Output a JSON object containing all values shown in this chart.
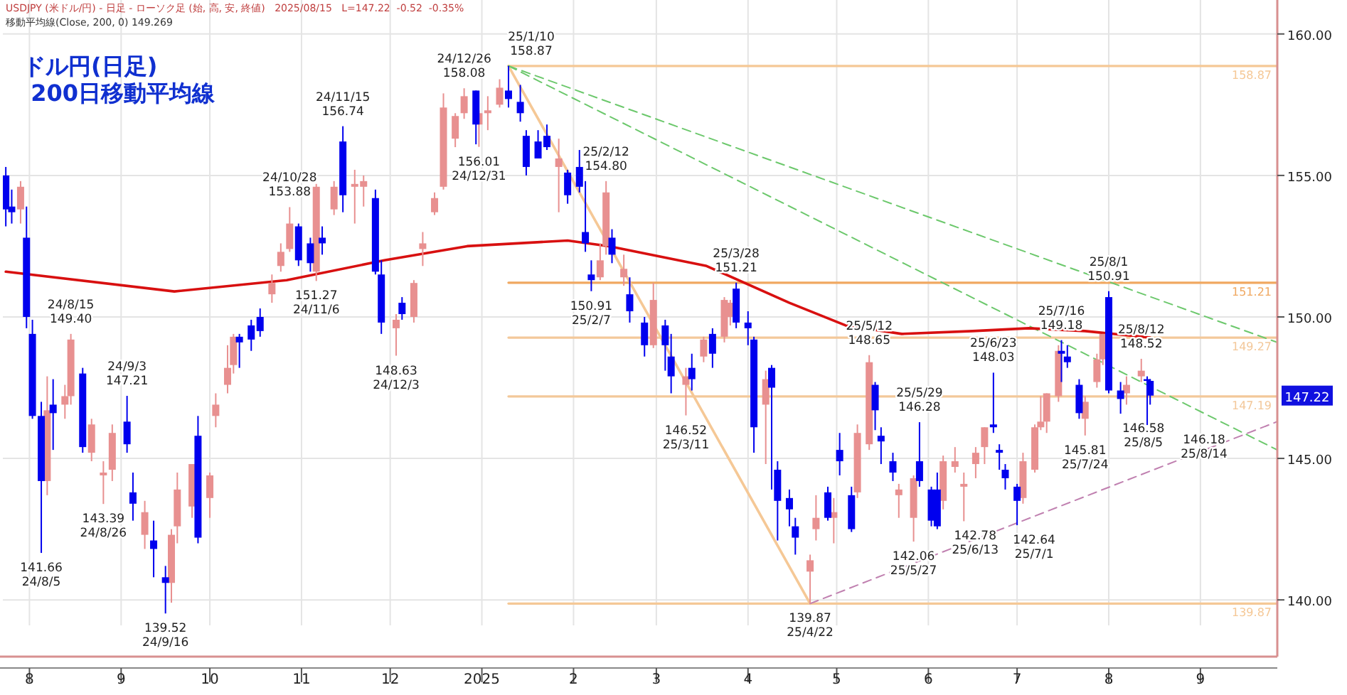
{
  "chart_data": {
    "type": "candlestick",
    "title": "ドル円(日足)\n 200日移動平均線",
    "subtitle": "USDJPY (米ドル/円) - 日足 - ローソク足 (始, 高, 安, 終値)   2025/08/15   L=147.22  -0.52  -0.35%",
    "xlim": [
      "2024-07-23",
      "2025-09-27"
    ],
    "ylim": [
      139.1,
      161.2
    ],
    "xticks": [
      {
        "value": "2024-08-01",
        "label": "8"
      },
      {
        "value": "2024-09-01",
        "label": "9"
      },
      {
        "value": "2024-10-01",
        "label": "10"
      },
      {
        "value": "2024-11-01",
        "label": "11"
      },
      {
        "value": "2024-12-01",
        "label": "12"
      },
      {
        "value": "2025-01-01",
        "label": "2025"
      },
      {
        "value": "2025-02-01",
        "label": "2"
      },
      {
        "value": "2025-03-01",
        "label": "3"
      },
      {
        "value": "2025-04-01",
        "label": "4"
      },
      {
        "value": "2025-05-01",
        "label": "5"
      },
      {
        "value": "2025-06-01",
        "label": "6"
      },
      {
        "value": "2025-07-01",
        "label": "7"
      },
      {
        "value": "2025-08-01",
        "label": "8"
      },
      {
        "value": "2025-09-01",
        "label": "9"
      }
    ],
    "yticks": [
      {
        "value": 140,
        "label": "140.00"
      },
      {
        "value": 145,
        "label": "145.00"
      },
      {
        "value": 150,
        "label": "150.00"
      },
      {
        "value": 155,
        "label": "155.00"
      },
      {
        "value": 160,
        "label": "160.00"
      }
    ],
    "grid": true,
    "series": [
      {
        "type": "line",
        "color": "#f5c896",
        "x": [
          "2025-01-10",
          "2025-09-27"
        ],
        "values": [
          158.87,
          158.87
        ],
        "name": "158.87"
      },
      {
        "type": "line",
        "color": "#f0a860",
        "x": [
          "2025-01-10",
          "2025-09-27"
        ],
        "values": [
          151.21,
          151.21
        ],
        "name": "151.21"
      },
      {
        "type": "line",
        "color": "#f3c89a",
        "x": [
          "2025-01-10",
          "2025-09-27"
        ],
        "values": [
          149.27,
          149.27
        ],
        "name": "149.27"
      },
      {
        "type": "line",
        "color": "#f3c89a",
        "x": [
          "2025-01-10",
          "2025-09-27"
        ],
        "values": [
          147.19,
          147.19
        ],
        "name": "147.19"
      },
      {
        "type": "line",
        "color": "#f5c896",
        "x": [
          "2025-01-10",
          "2025-09-27"
        ],
        "values": [
          139.87,
          139.87
        ],
        "name": "139.87"
      },
      {
        "type": "line",
        "color": "#f5c896",
        "x": [
          "2025-01-10",
          "2025-04-22"
        ],
        "values": [
          158.87,
          139.87
        ]
      },
      {
        "type": "line",
        "color": "#6cc86c",
        "line_style": "dashed",
        "x": [
          "2025-01-10",
          "2025-09-27"
        ],
        "values": [
          158.87,
          149.1
        ]
      },
      {
        "type": "line",
        "color": "#6cc86c",
        "line_style": "dashed",
        "x": [
          "2025-01-10",
          "2025-09-27"
        ],
        "values": [
          158.87,
          145.3
        ]
      },
      {
        "type": "line",
        "color": "#c080b0",
        "line_style": "dashed",
        "x": [
          "2025-04-22",
          "2025-09-27"
        ],
        "values": [
          139.87,
          146.3
        ]
      },
      {
        "type": "line",
        "color": "#d81010",
        "x": [
          "2024-07-24",
          "2024-09-19",
          "2024-10-27",
          "2024-11-29",
          "2024-12-27",
          "2025-01-30",
          "2025-02-13",
          "2025-03-18",
          "2025-04-15",
          "2025-05-04",
          "2025-05-23",
          "2025-06-16",
          "2025-07-05",
          "2025-07-24",
          "2025-08-15"
        ],
        "values": [
          151.6,
          150.9,
          151.3,
          152.0,
          152.5,
          152.7,
          152.5,
          151.8,
          150.5,
          149.7,
          149.4,
          149.5,
          149.6,
          149.5,
          149.27
        ]
      },
      {
        "color": "#e89090",
        "x": [
          "2024-07-29",
          "2024-08-07",
          "2024-08-13",
          "2024-08-15",
          "2024-08-22",
          "2024-08-26",
          "2024-08-29",
          "2024-09-09",
          "2024-09-18",
          "2024-09-20",
          "2024-09-25",
          "2024-10-01",
          "2024-10-03",
          "2024-10-07",
          "2024-10-09",
          "2024-10-22",
          "2024-10-25",
          "2024-10-28",
          "2024-11-06",
          "2024-11-12",
          "2024-11-19",
          "2024-11-22",
          "2024-12-03",
          "2024-12-09",
          "2024-12-12",
          "2024-12-16",
          "2024-12-19",
          "2024-12-23",
          "2024-12-26",
          "2024-12-31",
          "2025-01-03",
          "2025-01-07",
          "2025-01-27",
          "2025-02-10",
          "2025-02-12",
          "2025-02-18",
          "2025-02-28",
          "2025-03-11",
          "2025-03-17",
          "2025-03-24",
          "2025-03-26",
          "2025-04-07",
          "2025-04-22",
          "2025-04-24",
          "2025-04-30",
          "2025-05-08",
          "2025-05-12",
          "2025-05-22",
          "2025-05-27",
          "2025-06-06",
          "2025-06-10",
          "2025-06-13",
          "2025-06-17",
          "2025-06-20",
          "2025-07-03",
          "2025-07-07",
          "2025-07-09",
          "2025-07-11",
          "2025-07-15",
          "2025-07-24",
          "2025-07-28",
          "2025-07-30",
          "2025-08-07",
          "2025-08-12"
        ],
        "ohlc": [
          [
            153.8,
            154.8,
            153.3,
            154.6
          ],
          [
            144.2,
            147.9,
            143.7,
            146.7
          ],
          [
            146.9,
            147.6,
            146.4,
            147.2
          ],
          [
            147.2,
            149.4,
            146.9,
            149.2
          ],
          [
            145.2,
            146.4,
            144.9,
            146.2
          ],
          [
            144.4,
            144.9,
            143.39,
            144.5
          ],
          [
            144.6,
            146.2,
            144.2,
            145.9
          ],
          [
            142.3,
            143.5,
            141.8,
            143.1
          ],
          [
            140.6,
            142.5,
            139.9,
            142.3
          ],
          [
            142.6,
            144.5,
            142.0,
            143.9
          ],
          [
            143.3,
            144.8,
            142.9,
            144.8
          ],
          [
            143.6,
            144.5,
            142.9,
            144.4
          ],
          [
            146.5,
            147.3,
            146.1,
            146.9
          ],
          [
            147.6,
            149.0,
            147.3,
            148.2
          ],
          [
            148.3,
            149.4,
            148.0,
            149.3
          ],
          [
            150.8,
            151.5,
            150.5,
            151.2
          ],
          [
            151.8,
            152.6,
            151.6,
            152.3
          ],
          [
            152.4,
            153.88,
            152.3,
            153.3
          ],
          [
            151.6,
            154.7,
            151.27,
            154.6
          ],
          [
            153.8,
            154.8,
            153.6,
            154.6
          ],
          [
            154.6,
            155.2,
            153.3,
            154.7
          ],
          [
            154.6,
            155.0,
            153.9,
            154.8
          ],
          [
            149.6,
            150.1,
            148.63,
            149.9
          ],
          [
            150.0,
            151.3,
            149.8,
            151.2
          ],
          [
            152.4,
            153.0,
            151.8,
            152.6
          ],
          [
            153.7,
            154.4,
            153.6,
            154.2
          ],
          [
            154.6,
            157.9,
            154.5,
            157.4
          ],
          [
            156.3,
            157.2,
            156.0,
            157.1
          ],
          [
            157.2,
            158.08,
            157.0,
            157.8
          ],
          [
            156.8,
            157.3,
            156.01,
            157.2
          ],
          [
            157.2,
            157.8,
            156.6,
            157.3
          ],
          [
            157.5,
            158.4,
            157.4,
            158.1
          ],
          [
            155.3,
            156.3,
            153.7,
            155.6
          ],
          [
            151.4,
            152.6,
            151.3,
            152.0
          ],
          [
            152.5,
            154.8,
            152.2,
            154.4
          ],
          [
            151.4,
            152.2,
            151.1,
            151.7
          ],
          [
            149.0,
            151.2,
            148.9,
            150.6
          ],
          [
            147.6,
            148.2,
            146.52,
            147.9
          ],
          [
            148.6,
            149.3,
            148.4,
            149.2
          ],
          [
            149.3,
            150.7,
            149.1,
            150.6
          ],
          [
            150.0,
            150.6,
            149.7,
            150.5
          ],
          [
            146.9,
            148.1,
            144.8,
            147.8
          ],
          [
            141.0,
            141.6,
            139.87,
            141.4
          ],
          [
            142.5,
            143.7,
            142.1,
            142.9
          ],
          [
            142.9,
            143.6,
            142.0,
            143.1
          ],
          [
            143.8,
            146.2,
            143.6,
            145.9
          ],
          [
            145.5,
            148.65,
            145.3,
            148.4
          ],
          [
            143.7,
            144.1,
            142.9,
            143.9
          ],
          [
            142.9,
            144.4,
            142.06,
            144.3
          ],
          [
            143.5,
            145.1,
            143.2,
            144.9
          ],
          [
            144.7,
            145.4,
            144.5,
            144.9
          ],
          [
            144.0,
            144.5,
            142.78,
            144.1
          ],
          [
            144.8,
            145.4,
            144.3,
            145.2
          ],
          [
            145.4,
            146.1,
            144.8,
            146.1
          ],
          [
            143.6,
            145.2,
            143.4,
            144.9
          ],
          [
            144.6,
            146.2,
            144.5,
            146.1
          ],
          [
            146.1,
            147.2,
            146.0,
            146.3
          ],
          [
            146.3,
            147.3,
            145.9,
            147.3
          ],
          [
            147.2,
            149.0,
            147.0,
            148.8
          ],
          [
            146.4,
            147.2,
            145.81,
            147.0
          ],
          [
            147.7,
            148.7,
            147.5,
            148.5
          ],
          [
            148.5,
            149.4,
            148.3,
            149.4
          ],
          [
            147.3,
            147.9,
            146.9,
            147.6
          ],
          [
            147.9,
            148.52,
            147.7,
            148.1
          ]
        ]
      },
      {
        "color": "#0000ee",
        "x": [
          "2024-07-24",
          "2024-07-26",
          "2024-07-31",
          "2024-08-02",
          "2024-08-05",
          "2024-08-09",
          "2024-08-19",
          "2024-09-03",
          "2024-09-05",
          "2024-09-12",
          "2024-09-16",
          "2024-09-27",
          "2024-10-11",
          "2024-10-15",
          "2024-10-18",
          "2024-10-31",
          "2024-11-04",
          "2024-11-08",
          "2024-11-15",
          "2024-11-26",
          "2024-11-28",
          "2024-12-05",
          "2024-12-30",
          "2025-01-10",
          "2025-01-14",
          "2025-01-16",
          "2025-01-20",
          "2025-01-23",
          "2025-01-30",
          "2025-02-03",
          "2025-02-05",
          "2025-02-07",
          "2025-02-14",
          "2025-02-20",
          "2025-02-25",
          "2025-03-04",
          "2025-03-06",
          "2025-03-13",
          "2025-03-20",
          "2025-03-28",
          "2025-04-01",
          "2025-04-03",
          "2025-04-09",
          "2025-04-11",
          "2025-04-15",
          "2025-04-17",
          "2025-04-28",
          "2025-05-02",
          "2025-05-06",
          "2025-05-14",
          "2025-05-16",
          "2025-05-20",
          "2025-05-29",
          "2025-06-02",
          "2025-06-04",
          "2025-06-23",
          "2025-06-25",
          "2025-06-27",
          "2025-07-01",
          "2025-07-16",
          "2025-07-18",
          "2025-07-22",
          "2025-08-01",
          "2025-08-05",
          "2025-08-14",
          "2025-08-15"
        ],
        "ohlc": [
          [
            155.0,
            155.3,
            153.2,
            153.8
          ],
          [
            153.9,
            154.5,
            153.3,
            153.7
          ],
          [
            152.8,
            153.9,
            149.6,
            150.0
          ],
          [
            149.4,
            149.9,
            146.4,
            146.5
          ],
          [
            146.5,
            147.0,
            141.66,
            144.2
          ],
          [
            146.9,
            147.8,
            145.3,
            146.6
          ],
          [
            148.0,
            148.2,
            145.2,
            145.4
          ],
          [
            146.3,
            147.21,
            145.2,
            145.5
          ],
          [
            143.8,
            144.5,
            142.8,
            143.4
          ],
          [
            142.1,
            142.8,
            140.8,
            141.8
          ],
          [
            140.8,
            141.2,
            139.52,
            140.6
          ],
          [
            145.8,
            146.5,
            142.0,
            142.2
          ],
          [
            149.3,
            149.4,
            148.2,
            149.1
          ],
          [
            149.7,
            149.9,
            148.8,
            149.2
          ],
          [
            150.0,
            150.3,
            149.3,
            149.5
          ],
          [
            153.2,
            153.3,
            151.8,
            152.0
          ],
          [
            152.6,
            152.8,
            151.6,
            151.9
          ],
          [
            152.8,
            153.2,
            152.2,
            152.6
          ],
          [
            156.2,
            156.74,
            153.7,
            154.3
          ],
          [
            154.2,
            154.5,
            151.5,
            151.6
          ],
          [
            151.5,
            152.0,
            149.4,
            149.8
          ],
          [
            150.5,
            150.7,
            149.9,
            150.1
          ],
          [
            158.0,
            158.0,
            156.1,
            156.8
          ],
          [
            158.0,
            158.87,
            157.4,
            157.7
          ],
          [
            157.6,
            158.2,
            156.9,
            157.2
          ],
          [
            156.4,
            156.6,
            155.0,
            155.3
          ],
          [
            156.2,
            156.6,
            155.6,
            155.6
          ],
          [
            156.4,
            156.8,
            155.9,
            156.0
          ],
          [
            155.1,
            155.2,
            154.0,
            154.3
          ],
          [
            155.3,
            155.9,
            154.4,
            154.6
          ],
          [
            153.0,
            154.8,
            152.3,
            152.6
          ],
          [
            151.5,
            152.0,
            150.91,
            151.3
          ],
          [
            152.8,
            153.1,
            151.9,
            152.2
          ],
          [
            150.8,
            151.4,
            149.8,
            150.2
          ],
          [
            149.8,
            150.0,
            148.6,
            149.0
          ],
          [
            149.7,
            149.9,
            148.1,
            149.0
          ],
          [
            148.6,
            149.4,
            147.3,
            147.9
          ],
          [
            148.2,
            148.7,
            147.4,
            147.8
          ],
          [
            149.4,
            149.6,
            148.2,
            148.7
          ],
          [
            151.0,
            151.21,
            149.6,
            149.8
          ],
          [
            149.8,
            150.2,
            149.0,
            149.6
          ],
          [
            149.2,
            149.3,
            145.2,
            146.1
          ],
          [
            148.2,
            148.3,
            143.9,
            147.5
          ],
          [
            144.6,
            144.9,
            142.1,
            143.5
          ],
          [
            143.6,
            143.9,
            142.6,
            143.2
          ],
          [
            142.6,
            142.9,
            141.6,
            142.2
          ],
          [
            143.8,
            144.0,
            142.8,
            142.9
          ],
          [
            145.3,
            145.9,
            144.4,
            144.9
          ],
          [
            143.7,
            144.0,
            142.4,
            142.5
          ],
          [
            147.6,
            147.7,
            146.0,
            146.7
          ],
          [
            145.8,
            146.1,
            144.8,
            145.6
          ],
          [
            144.9,
            145.2,
            144.2,
            144.5
          ],
          [
            144.9,
            146.28,
            144.0,
            144.2
          ],
          [
            143.9,
            144.0,
            142.6,
            142.8
          ],
          [
            143.9,
            144.5,
            142.5,
            142.6
          ],
          [
            146.2,
            148.03,
            145.9,
            146.1
          ],
          [
            145.3,
            145.5,
            144.6,
            145.2
          ],
          [
            144.6,
            144.8,
            143.9,
            144.3
          ],
          [
            144.0,
            144.1,
            142.64,
            143.5
          ],
          [
            148.8,
            149.18,
            147.7,
            148.7
          ],
          [
            148.6,
            149.0,
            148.2,
            148.4
          ],
          [
            147.6,
            147.8,
            146.4,
            146.6
          ],
          [
            150.7,
            150.91,
            147.3,
            147.4
          ],
          [
            147.4,
            147.7,
            146.58,
            147.1
          ],
          [
            147.8,
            147.9,
            146.18,
            147.74
          ],
          [
            147.74,
            147.8,
            146.9,
            147.22
          ]
        ]
      }
    ],
    "annotations": [
      "移動平均線(Close, 200, 0) 149.269",
      {
        "text": "147.22",
        "y": 147.22
      },
      {
        "text": "141.66\n24/8/5",
        "x": "2024-08-05",
        "y": 141.66
      },
      {
        "text": "24/8/15\n149.40",
        "x": "2024-08-15",
        "y": 149.4
      },
      {
        "text": "143.39\n24/8/26",
        "x": "2024-08-26",
        "y": 143.39
      },
      {
        "text": "24/9/3\n147.21",
        "x": "2024-09-03",
        "y": 147.21
      },
      {
        "text": "139.52\n24/9/16",
        "x": "2024-09-16",
        "y": 139.52
      },
      {
        "text": "24/10/28\n153.88",
        "x": "2024-10-28",
        "y": 153.88
      },
      {
        "text": "151.27\n24/11/6",
        "x": "2024-11-06",
        "y": 151.27
      },
      {
        "text": "24/11/15\n156.74",
        "x": "2024-11-15",
        "y": 156.74
      },
      {
        "text": "148.63\n24/12/3",
        "x": "2024-12-03",
        "y": 148.63
      },
      {
        "text": "24/12/26\n158.08",
        "x": "2024-12-26",
        "y": 158.08
      },
      {
        "text": "156.01\n24/12/31",
        "x": "2024-12-31",
        "y": 156.01
      },
      {
        "text": "25/1/10\n158.87",
        "x": "2025-01-10",
        "y": 158.87
      },
      {
        "text": "150.91\n25/2/7",
        "x": "2025-02-07",
        "y": 150.91
      },
      {
        "text": "25/2/12\n154.80",
        "x": "2025-02-12",
        "y": 154.8
      },
      {
        "text": "146.52\n25/3/11",
        "x": "2025-03-11",
        "y": 146.52
      },
      {
        "text": "25/3/28\n151.21",
        "x": "2025-03-28",
        "y": 151.21
      },
      {
        "text": "139.87\n25/4/22",
        "x": "2025-04-22",
        "y": 139.87
      },
      {
        "text": "25/5/12\n148.65",
        "x": "2025-05-12",
        "y": 148.65
      },
      {
        "text": "142.06\n25/5/27",
        "x": "2025-05-27",
        "y": 142.06
      },
      {
        "text": "25/5/29\n146.28",
        "x": "2025-05-29",
        "y": 146.28
      },
      {
        "text": "142.78\n25/6/13",
        "x": "2025-06-13",
        "y": 142.78
      },
      {
        "text": "25/6/23\n148.03",
        "x": "2025-06-23",
        "y": 148.03
      },
      {
        "text": "142.64\n25/7/1",
        "x": "2025-07-01",
        "y": 142.64
      },
      {
        "text": "25/7/16\n149.18",
        "x": "2025-07-16",
        "y": 149.18
      },
      {
        "text": "145.81\n25/7/24",
        "x": "2025-07-24",
        "y": 145.81
      },
      {
        "text": "25/8/1\n150.91",
        "x": "2025-08-01",
        "y": 150.91
      },
      {
        "text": "146.58\n25/8/5",
        "x": "2025-08-05",
        "y": 146.58
      },
      {
        "text": "25/8/12\n148.52",
        "x": "2025-08-12",
        "y": 148.52
      },
      {
        "text": "146.18\n25/8/14",
        "x": "2025-08-14",
        "y": 146.18
      }
    ]
  }
}
